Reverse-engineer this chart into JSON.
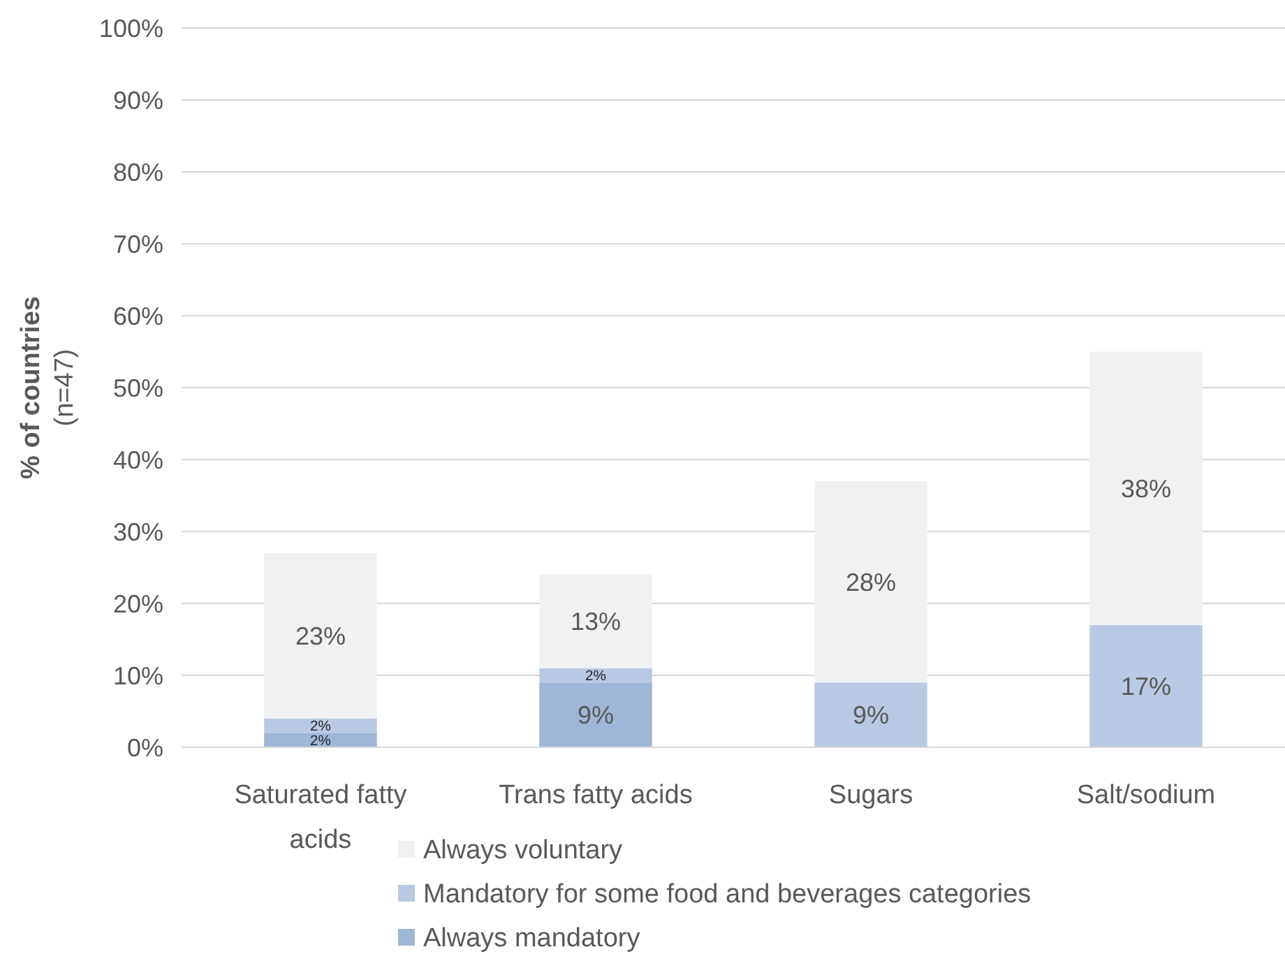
{
  "chart_data": {
    "type": "bar",
    "stacked": true,
    "ylabel": "% of countries\n(n=47)",
    "categories": [
      "Saturated fatty acids",
      "Trans fatty acids",
      "Sugars",
      "Salt/sodium"
    ],
    "series": [
      {
        "name": "Always mandatory",
        "color": "#9fb6d6",
        "values": [
          2,
          9,
          null,
          null
        ],
        "value_labels": [
          "2%",
          "9%",
          null,
          null
        ]
      },
      {
        "name": "Mandatory for some food and beverages categories",
        "color": "#b9c9e3",
        "values": [
          2,
          2,
          9,
          17
        ],
        "value_labels": [
          "2%",
          "2%",
          "9%",
          "17%"
        ]
      },
      {
        "name": "Always voluntary",
        "color": "#f0f1f3",
        "values": [
          23,
          13,
          28,
          38
        ],
        "value_labels": [
          "23%",
          "13%",
          "28%",
          "38%"
        ]
      }
    ],
    "ylim": [
      0,
      100
    ],
    "yticks": [
      {
        "value": 0,
        "label": "0%"
      },
      {
        "value": 10,
        "label": "10%"
      },
      {
        "value": 20,
        "label": "20%"
      },
      {
        "value": 30,
        "label": "30%"
      },
      {
        "value": 40,
        "label": "40%"
      },
      {
        "value": 50,
        "label": "50%"
      },
      {
        "value": 60,
        "label": "60%"
      },
      {
        "value": 70,
        "label": "70%"
      },
      {
        "value": 80,
        "label": "80%"
      },
      {
        "value": 90,
        "label": "90%"
      },
      {
        "value": 100,
        "label": "100%"
      }
    ],
    "grid": "y",
    "legend": "bottom"
  }
}
